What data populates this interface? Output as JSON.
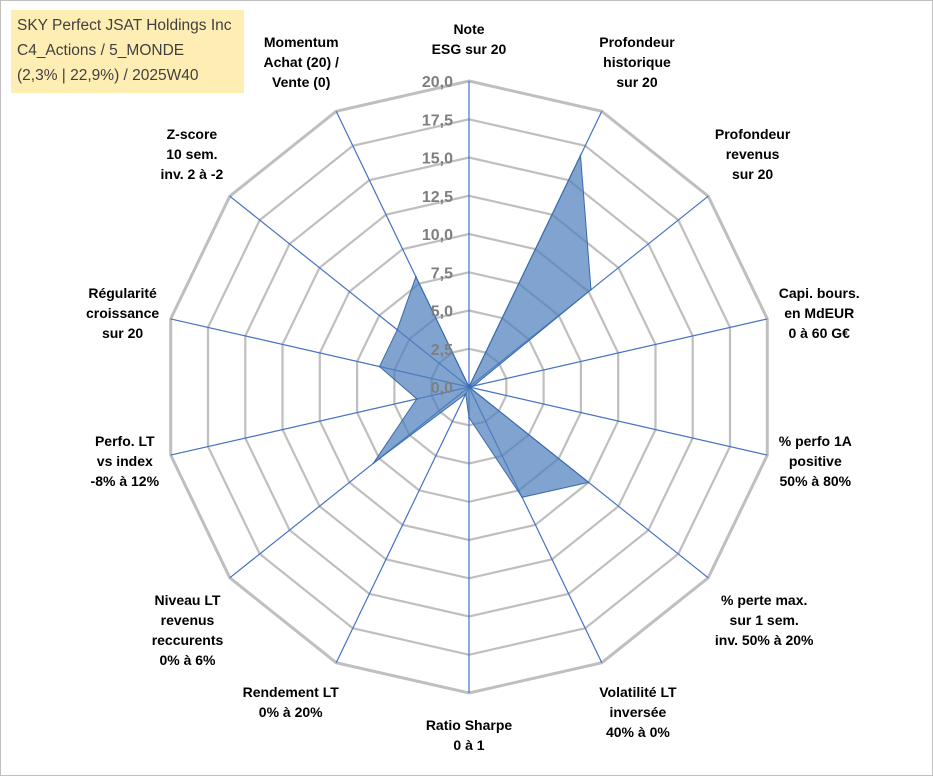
{
  "title_lines": [
    "SKY Perfect JSAT Holdings Inc",
    "C4_Actions / 5_MONDE",
    "(2,3% | 22,9%) / 2025W40"
  ],
  "chart_data": {
    "type": "radar",
    "rmin": 0,
    "rmax": 20,
    "ticks": [
      "0,0",
      "2,5",
      "5,0",
      "7,5",
      "10,0",
      "12,5",
      "15,0",
      "17,5",
      "20,0"
    ],
    "axes": [
      [
        "Note",
        "ESG sur 20"
      ],
      [
        "Profondeur",
        "historique",
        "sur 20"
      ],
      [
        "Profondeur",
        "revenus",
        "sur 20"
      ],
      [
        "Capi. bours.",
        "en MdEUR",
        "0 à 60 G€"
      ],
      [
        "% perfo 1A",
        "positive",
        "50% à 80%"
      ],
      [
        "% perte max.",
        "sur 1 sem.",
        "inv. 50% à 20%"
      ],
      [
        "Volatilité LT",
        "inversée",
        "40% à 0%"
      ],
      [
        "Ratio Sharpe",
        "0 à 1"
      ],
      [
        "Rendement LT",
        "0% à 20%"
      ],
      [
        "Niveau LT",
        "revenus",
        "reccurents",
        "0% à 6%"
      ],
      [
        "Perfo. LT",
        "vs index",
        "-8% à 12%"
      ],
      [
        "Régularité",
        "croissance",
        "sur 20"
      ],
      [
        "Z-score",
        "10 sem.",
        "inv. 2 à -2"
      ],
      [
        "Momentum",
        "Achat (20) /",
        "Vente (0)"
      ]
    ],
    "values": [
      0,
      16.8,
      10.2,
      0.3,
      0.0,
      10.0,
      8.0,
      2.0,
      0.5,
      8.0,
      3.5,
      6.0,
      6.0,
      8.0
    ],
    "colors": {
      "fill": "#4f81bd",
      "fill_opacity": 0.72,
      "spoke": "#4472c4",
      "grid": "#bfbfbf"
    }
  }
}
